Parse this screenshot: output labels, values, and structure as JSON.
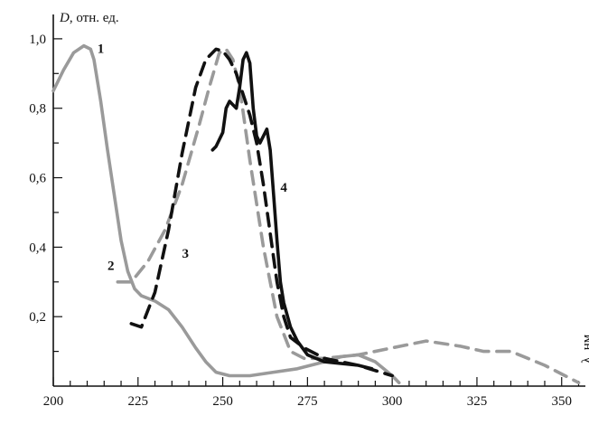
{
  "chart_data": {
    "type": "line",
    "title": "",
    "ylabel_var": "D",
    "ylabel_unit": ", отн. ед.",
    "xlabel": "λ, нм",
    "xlim": [
      200,
      357
    ],
    "ylim": [
      0,
      1.07
    ],
    "x_ticks": [
      200,
      225,
      250,
      275,
      300,
      325,
      350
    ],
    "x_tick_labels": [
      "200",
      "225",
      "250",
      "275",
      "300",
      "325",
      "350"
    ],
    "x_minor_step": 5,
    "y_ticks": [
      0.2,
      0.4,
      0.6,
      0.8,
      1.0
    ],
    "y_tick_labels": [
      "0,2",
      "0,4",
      "0,6",
      "0,8",
      "1,0"
    ],
    "y_minor_step": 0.1,
    "grid": false,
    "legend": "none",
    "series": [
      {
        "label": "1",
        "label_at": [
          214,
          0.96
        ],
        "color": "#9a9a9a",
        "dash": "solid",
        "x": [
          200,
          203,
          206,
          209,
          211,
          212,
          214,
          216,
          218,
          220,
          222,
          224,
          226,
          230,
          234,
          238,
          242,
          245,
          248,
          252,
          258,
          265,
          272,
          280,
          285,
          290,
          295,
          300,
          302
        ],
        "y": [
          0.85,
          0.91,
          0.96,
          0.98,
          0.97,
          0.94,
          0.82,
          0.68,
          0.55,
          0.42,
          0.33,
          0.28,
          0.26,
          0.245,
          0.22,
          0.17,
          0.11,
          0.07,
          0.04,
          0.03,
          0.03,
          0.04,
          0.05,
          0.07,
          0.085,
          0.09,
          0.07,
          0.03,
          0.01
        ]
      },
      {
        "label": "2",
        "label_at": [
          217,
          0.335
        ],
        "color": "#9a9a9a",
        "dash": "dashed",
        "x": [
          219,
          223,
          228,
          233,
          238,
          243,
          246,
          249,
          251,
          253,
          255,
          258,
          262,
          266,
          270,
          274,
          280,
          290,
          300,
          310,
          320,
          327,
          335,
          345,
          355
        ],
        "y": [
          0.3,
          0.3,
          0.36,
          0.45,
          0.58,
          0.75,
          0.86,
          0.96,
          0.97,
          0.94,
          0.86,
          0.65,
          0.4,
          0.2,
          0.1,
          0.08,
          0.08,
          0.09,
          0.11,
          0.13,
          0.115,
          0.1,
          0.1,
          0.06,
          0.01
        ]
      },
      {
        "label": "3",
        "label_at": [
          239,
          0.37
        ],
        "color": "#111111",
        "dash": "dashed",
        "x": [
          223,
          226,
          230,
          234,
          238,
          242,
          245,
          248,
          250,
          252,
          254,
          256,
          258,
          260,
          262,
          264,
          266,
          268,
          270,
          274,
          280,
          290,
          300
        ],
        "y": [
          0.18,
          0.17,
          0.27,
          0.45,
          0.67,
          0.86,
          0.94,
          0.97,
          0.965,
          0.94,
          0.9,
          0.84,
          0.78,
          0.7,
          0.58,
          0.44,
          0.3,
          0.2,
          0.14,
          0.11,
          0.08,
          0.06,
          0.03
        ]
      },
      {
        "label": "4",
        "label_at": [
          268,
          0.56
        ],
        "color": "#111111",
        "dash": "solid",
        "x": [
          247,
          248,
          250,
          251,
          252,
          253,
          254,
          255,
          256,
          257,
          258,
          259,
          260,
          261,
          262,
          263,
          264,
          265,
          266,
          267,
          268,
          270,
          272,
          275,
          280,
          290,
          294
        ],
        "y": [
          0.68,
          0.69,
          0.73,
          0.8,
          0.82,
          0.81,
          0.8,
          0.86,
          0.94,
          0.96,
          0.93,
          0.8,
          0.72,
          0.7,
          0.72,
          0.74,
          0.68,
          0.55,
          0.42,
          0.3,
          0.24,
          0.17,
          0.13,
          0.09,
          0.07,
          0.06,
          0.05
        ]
      }
    ]
  }
}
